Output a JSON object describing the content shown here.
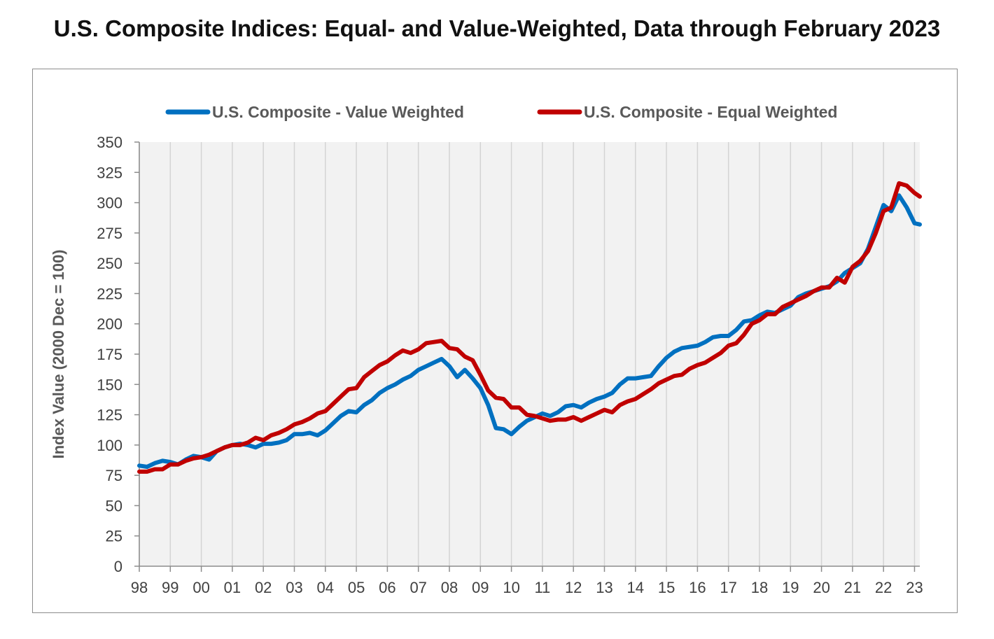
{
  "chart_data": {
    "type": "line",
    "title": "U.S. Composite Indices: Equal- and Value-Weighted, Data through February 2023",
    "xlabel": "",
    "ylabel": "Index Value (2000 Dec = 100)",
    "ylim": [
      0,
      350
    ],
    "yticks": [
      0,
      25,
      50,
      75,
      100,
      125,
      150,
      175,
      200,
      225,
      250,
      275,
      300,
      325,
      350
    ],
    "xlim": [
      1998,
      2023.17
    ],
    "xtick_labels": [
      "98",
      "99",
      "00",
      "01",
      "02",
      "03",
      "04",
      "05",
      "06",
      "07",
      "08",
      "09",
      "10",
      "11",
      "12",
      "13",
      "14",
      "15",
      "16",
      "17",
      "18",
      "19",
      "20",
      "21",
      "22",
      "23"
    ],
    "grid": "vertical",
    "legend_position": "top",
    "series": [
      {
        "name": "U.S. Composite - Value Weighted",
        "color": "#0070C0",
        "x": [
          1998.0,
          1998.25,
          1998.5,
          1998.75,
          1999.0,
          1999.25,
          1999.5,
          1999.75,
          2000.0,
          2000.25,
          2000.5,
          2000.75,
          2001.0,
          2001.25,
          2001.5,
          2001.75,
          2002.0,
          2002.25,
          2002.5,
          2002.75,
          2003.0,
          2003.25,
          2003.5,
          2003.75,
          2004.0,
          2004.25,
          2004.5,
          2004.75,
          2005.0,
          2005.25,
          2005.5,
          2005.75,
          2006.0,
          2006.25,
          2006.5,
          2006.75,
          2007.0,
          2007.25,
          2007.5,
          2007.75,
          2008.0,
          2008.25,
          2008.5,
          2008.75,
          2009.0,
          2009.25,
          2009.5,
          2009.75,
          2010.0,
          2010.25,
          2010.5,
          2010.75,
          2011.0,
          2011.25,
          2011.5,
          2011.75,
          2012.0,
          2012.25,
          2012.5,
          2012.75,
          2013.0,
          2013.25,
          2013.5,
          2013.75,
          2014.0,
          2014.25,
          2014.5,
          2014.75,
          2015.0,
          2015.25,
          2015.5,
          2015.75,
          2016.0,
          2016.25,
          2016.5,
          2016.75,
          2017.0,
          2017.25,
          2017.5,
          2017.75,
          2018.0,
          2018.25,
          2018.5,
          2018.75,
          2019.0,
          2019.25,
          2019.5,
          2019.75,
          2020.0,
          2020.25,
          2020.5,
          2020.75,
          2021.0,
          2021.25,
          2021.5,
          2021.75,
          2022.0,
          2022.25,
          2022.5,
          2022.75,
          2023.0,
          2023.17
        ],
        "y": [
          83,
          82,
          85,
          87,
          86,
          84,
          88,
          91,
          90,
          88,
          95,
          98,
          100,
          101,
          100,
          98,
          101,
          101,
          102,
          104,
          109,
          109,
          110,
          108,
          112,
          118,
          124,
          128,
          127,
          133,
          137,
          143,
          147,
          150,
          154,
          157,
          162,
          165,
          168,
          171,
          165,
          156,
          162,
          155,
          147,
          133,
          114,
          113,
          109,
          115,
          120,
          123,
          126,
          124,
          127,
          132,
          133,
          131,
          135,
          138,
          140,
          143,
          150,
          155,
          155,
          156,
          157,
          165,
          172,
          177,
          180,
          181,
          182,
          185,
          189,
          190,
          190,
          195,
          202,
          203,
          207,
          210,
          209,
          212,
          215,
          222,
          225,
          227,
          229,
          231,
          235,
          242,
          246,
          250,
          262,
          280,
          298,
          293,
          306,
          296,
          283,
          282
        ]
      },
      {
        "name": "U.S. Composite - Equal Weighted",
        "color": "#C00000",
        "x": [
          1998.0,
          1998.25,
          1998.5,
          1998.75,
          1999.0,
          1999.25,
          1999.5,
          1999.75,
          2000.0,
          2000.25,
          2000.5,
          2000.75,
          2001.0,
          2001.25,
          2001.5,
          2001.75,
          2002.0,
          2002.25,
          2002.5,
          2002.75,
          2003.0,
          2003.25,
          2003.5,
          2003.75,
          2004.0,
          2004.25,
          2004.5,
          2004.75,
          2005.0,
          2005.25,
          2005.5,
          2005.75,
          2006.0,
          2006.25,
          2006.5,
          2006.75,
          2007.0,
          2007.25,
          2007.5,
          2007.75,
          2008.0,
          2008.25,
          2008.5,
          2008.75,
          2009.0,
          2009.25,
          2009.5,
          2009.75,
          2010.0,
          2010.25,
          2010.5,
          2010.75,
          2011.0,
          2011.25,
          2011.5,
          2011.75,
          2012.0,
          2012.25,
          2012.5,
          2012.75,
          2013.0,
          2013.25,
          2013.5,
          2013.75,
          2014.0,
          2014.25,
          2014.5,
          2014.75,
          2015.0,
          2015.25,
          2015.5,
          2015.75,
          2016.0,
          2016.25,
          2016.5,
          2016.75,
          2017.0,
          2017.25,
          2017.5,
          2017.75,
          2018.0,
          2018.25,
          2018.5,
          2018.75,
          2019.0,
          2019.25,
          2019.5,
          2019.75,
          2020.0,
          2020.25,
          2020.5,
          2020.75,
          2021.0,
          2021.25,
          2021.5,
          2021.75,
          2022.0,
          2022.25,
          2022.5,
          2022.75,
          2023.0,
          2023.17
        ],
        "y": [
          78,
          78,
          80,
          80,
          84,
          84,
          87,
          89,
          90,
          92,
          95,
          98,
          100,
          100,
          102,
          106,
          104,
          108,
          110,
          113,
          117,
          119,
          122,
          126,
          128,
          134,
          140,
          146,
          147,
          156,
          161,
          166,
          169,
          174,
          178,
          176,
          179,
          184,
          185,
          186,
          180,
          179,
          173,
          170,
          158,
          145,
          139,
          138,
          131,
          131,
          125,
          124,
          122,
          120,
          121,
          121,
          123,
          120,
          123,
          126,
          129,
          127,
          133,
          136,
          138,
          142,
          146,
          151,
          154,
          157,
          158,
          163,
          166,
          168,
          172,
          176,
          182,
          184,
          191,
          200,
          203,
          208,
          208,
          214,
          217,
          220,
          223,
          227,
          230,
          230,
          238,
          234,
          247,
          252,
          260,
          275,
          293,
          296,
          316,
          314,
          308,
          305
        ]
      }
    ]
  }
}
